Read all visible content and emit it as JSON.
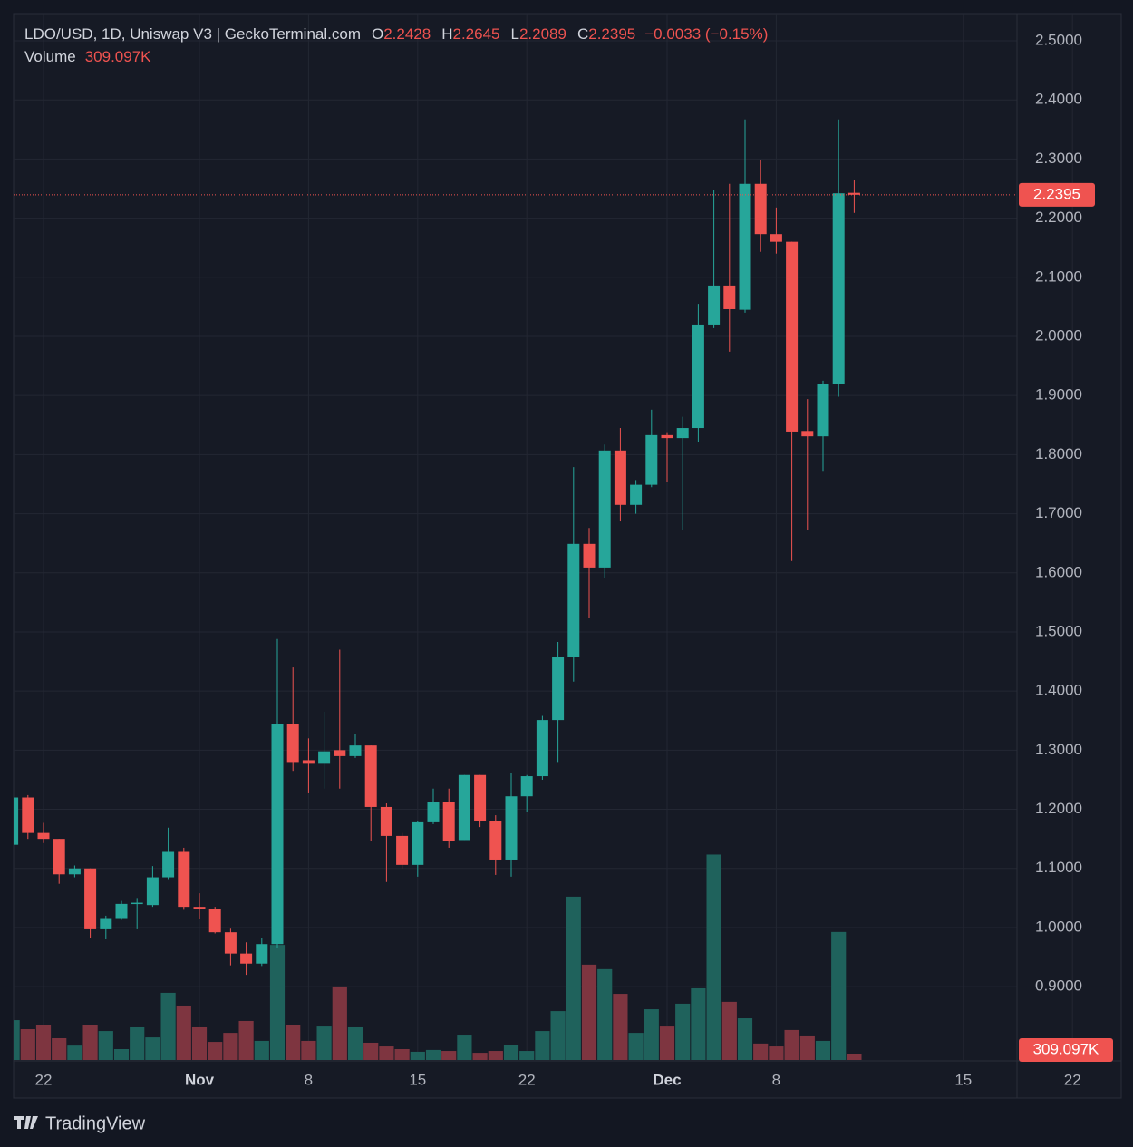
{
  "chart_data": {
    "type": "candlestick",
    "title": "LDO/USD, 1D, Uniswap V3 | GeckoTerminal.com",
    "ohlc_keys": [
      "O",
      "H",
      "L",
      "C"
    ],
    "change": "−0.0033 (−0.15%)",
    "up_color": "#26a69a",
    "down_color": "#ef5350",
    "categories": [
      "Oct 20",
      "Oct 21",
      "Oct 22",
      "Oct 23",
      "Oct 24",
      "Oct 25",
      "Oct 26",
      "Oct 27",
      "Oct 28",
      "Oct 29",
      "Oct 30",
      "Oct 31",
      "Nov 1",
      "Nov 2",
      "Nov 3",
      "Nov 4",
      "Nov 5",
      "Nov 6",
      "Nov 7",
      "Nov 8",
      "Nov 9",
      "Nov 10",
      "Nov 11",
      "Nov 12",
      "Nov 13",
      "Nov 14",
      "Nov 15",
      "Nov 16",
      "Nov 17",
      "Nov 18",
      "Nov 19",
      "Nov 20",
      "Nov 21",
      "Nov 22",
      "Nov 23",
      "Nov 24",
      "Nov 25",
      "Nov 26",
      "Nov 27",
      "Nov 28",
      "Nov 29",
      "Nov 30",
      "Dec 1",
      "Dec 2",
      "Dec 3",
      "Dec 4",
      "Dec 5",
      "Dec 6",
      "Dec 7",
      "Dec 8",
      "Dec 9",
      "Dec 10",
      "Dec 11",
      "Dec 12",
      "Dec 13"
    ],
    "open": [
      1.14,
      1.22,
      1.16,
      1.15,
      1.09,
      1.1,
      0.997,
      1.016,
      1.04,
      1.038,
      1.085,
      1.128,
      1.035,
      1.032,
      0.992,
      0.956,
      0.939,
      0.972,
      1.345,
      1.283,
      1.277,
      1.3,
      1.29,
      1.308,
      1.204,
      1.155,
      1.106,
      1.178,
      1.213,
      1.148,
      1.258,
      1.18,
      1.115,
      1.222,
      1.256,
      1.351,
      1.457,
      1.649,
      1.609,
      1.807,
      1.715,
      1.749,
      1.833,
      1.828,
      1.845,
      2.02,
      2.086,
      2.045,
      2.258,
      2.173,
      2.16,
      1.84,
      1.831,
      1.919,
      2.2428
    ],
    "high": [
      1.22,
      1.224,
      1.177,
      1.15,
      1.105,
      1.1,
      1.02,
      1.045,
      1.05,
      1.104,
      1.169,
      1.135,
      1.058,
      1.035,
      0.998,
      0.975,
      0.982,
      1.488,
      1.44,
      1.32,
      1.365,
      1.47,
      1.327,
      1.308,
      1.21,
      1.16,
      1.18,
      1.235,
      1.235,
      1.258,
      1.258,
      1.19,
      1.262,
      1.258,
      1.358,
      1.483,
      1.779,
      1.676,
      1.817,
      1.845,
      1.757,
      1.876,
      1.838,
      1.864,
      2.055,
      2.247,
      2.258,
      2.367,
      2.298,
      2.218,
      2.16,
      1.894,
      1.925,
      2.367,
      2.2645
    ],
    "low": [
      1.14,
      1.15,
      1.143,
      1.074,
      1.085,
      0.982,
      0.98,
      1.013,
      0.997,
      1.035,
      1.082,
      1.03,
      1.015,
      0.99,
      0.936,
      0.92,
      0.935,
      0.965,
      1.265,
      1.227,
      1.235,
      1.235,
      1.287,
      1.146,
      1.077,
      1.1,
      1.086,
      1.175,
      1.135,
      1.148,
      1.17,
      1.089,
      1.086,
      1.196,
      1.25,
      1.28,
      1.416,
      1.523,
      1.592,
      1.687,
      1.7,
      1.745,
      1.753,
      1.673,
      1.822,
      2.014,
      1.974,
      2.04,
      2.143,
      2.14,
      1.62,
      1.672,
      1.771,
      1.898,
      2.2089
    ],
    "close": [
      1.22,
      1.16,
      1.15,
      1.09,
      1.1,
      0.997,
      1.016,
      1.04,
      1.042,
      1.085,
      1.128,
      1.035,
      1.032,
      0.992,
      0.956,
      0.939,
      0.972,
      1.345,
      1.28,
      1.277,
      1.298,
      1.29,
      1.308,
      1.204,
      1.155,
      1.106,
      1.178,
      1.213,
      1.146,
      1.258,
      1.18,
      1.115,
      1.222,
      1.256,
      1.351,
      1.457,
      1.649,
      1.609,
      1.807,
      1.715,
      1.749,
      1.833,
      1.828,
      1.845,
      2.02,
      2.086,
      2.046,
      2.258,
      2.173,
      2.16,
      1.839,
      1.831,
      1.919,
      2.242,
      2.2395
    ],
    "volume": {
      "name": "Volume",
      "up_color": "#1f625c",
      "down_color": "#7e3540",
      "ylim": [
        0,
        26000000
      ],
      "values": [
        1940000,
        1500000,
        1680000,
        1060000,
        700000,
        1720000,
        1410000,
        530000,
        1590000,
        1100000,
        3270000,
        2650000,
        1590000,
        880000,
        1320000,
        1900000,
        930000,
        5600000,
        1720000,
        930000,
        1630000,
        3580000,
        1590000,
        840000,
        660000,
        530000,
        400000,
        490000,
        440000,
        1190000,
        350000,
        440000,
        750000,
        440000,
        1410000,
        2380000,
        7950000,
        4640000,
        4420000,
        3220000,
        1320000,
        2470000,
        1630000,
        2740000,
        3490000,
        10000000,
        2830000,
        2030000,
        800000,
        660000,
        1460000,
        1150000,
        930000,
        6230000,
        309097
      ],
      "value_labels": [
        null,
        null,
        null,
        null,
        null,
        null,
        null,
        null,
        null,
        null,
        null,
        null,
        null,
        null,
        null,
        null,
        null,
        null,
        null,
        null,
        null,
        null,
        null,
        null,
        null,
        null,
        null,
        null,
        null,
        null,
        null,
        null,
        null,
        null,
        null,
        null,
        null,
        null,
        null,
        null,
        null,
        null,
        null,
        null,
        null,
        null,
        null,
        null,
        null,
        null,
        null,
        null,
        null,
        null,
        "309.097K"
      ]
    },
    "ylim": [
      0.776,
      2.546
    ],
    "yticks": [
      {
        "value": 0.9,
        "label": "0.9000"
      },
      {
        "value": 1.0,
        "label": "1.0000"
      },
      {
        "value": 1.1,
        "label": "1.1000"
      },
      {
        "value": 1.2,
        "label": "1.2000"
      },
      {
        "value": 1.3,
        "label": "1.3000"
      },
      {
        "value": 1.4,
        "label": "1.4000"
      },
      {
        "value": 1.5,
        "label": "1.5000"
      },
      {
        "value": 1.6,
        "label": "1.6000"
      },
      {
        "value": 1.7,
        "label": "1.7000"
      },
      {
        "value": 1.8,
        "label": "1.8000"
      },
      {
        "value": 1.9,
        "label": "1.9000"
      },
      {
        "value": 2.0,
        "label": "2.0000"
      },
      {
        "value": 2.1,
        "label": "2.1000"
      },
      {
        "value": 2.2,
        "label": "2.2000"
      },
      {
        "value": 2.3,
        "label": "2.3000"
      },
      {
        "value": 2.4,
        "label": "2.4000"
      },
      {
        "value": 2.5,
        "label": "2.5000"
      }
    ],
    "xticks": [
      {
        "value": "Oct 22",
        "label": "22"
      },
      {
        "value": "Nov 1",
        "label": "Nov"
      },
      {
        "value": "Nov 8",
        "label": "8"
      },
      {
        "value": "Nov 15",
        "label": "15"
      },
      {
        "value": "Nov 22",
        "label": "22"
      },
      {
        "value": "Dec 1",
        "label": "Dec"
      },
      {
        "value": "Dec 8",
        "label": "8"
      },
      {
        "value": "Dec 15",
        "label": "15"
      },
      {
        "value": "Dec 22",
        "label": "22"
      }
    ],
    "grid": true
  },
  "brand": "TradingView"
}
